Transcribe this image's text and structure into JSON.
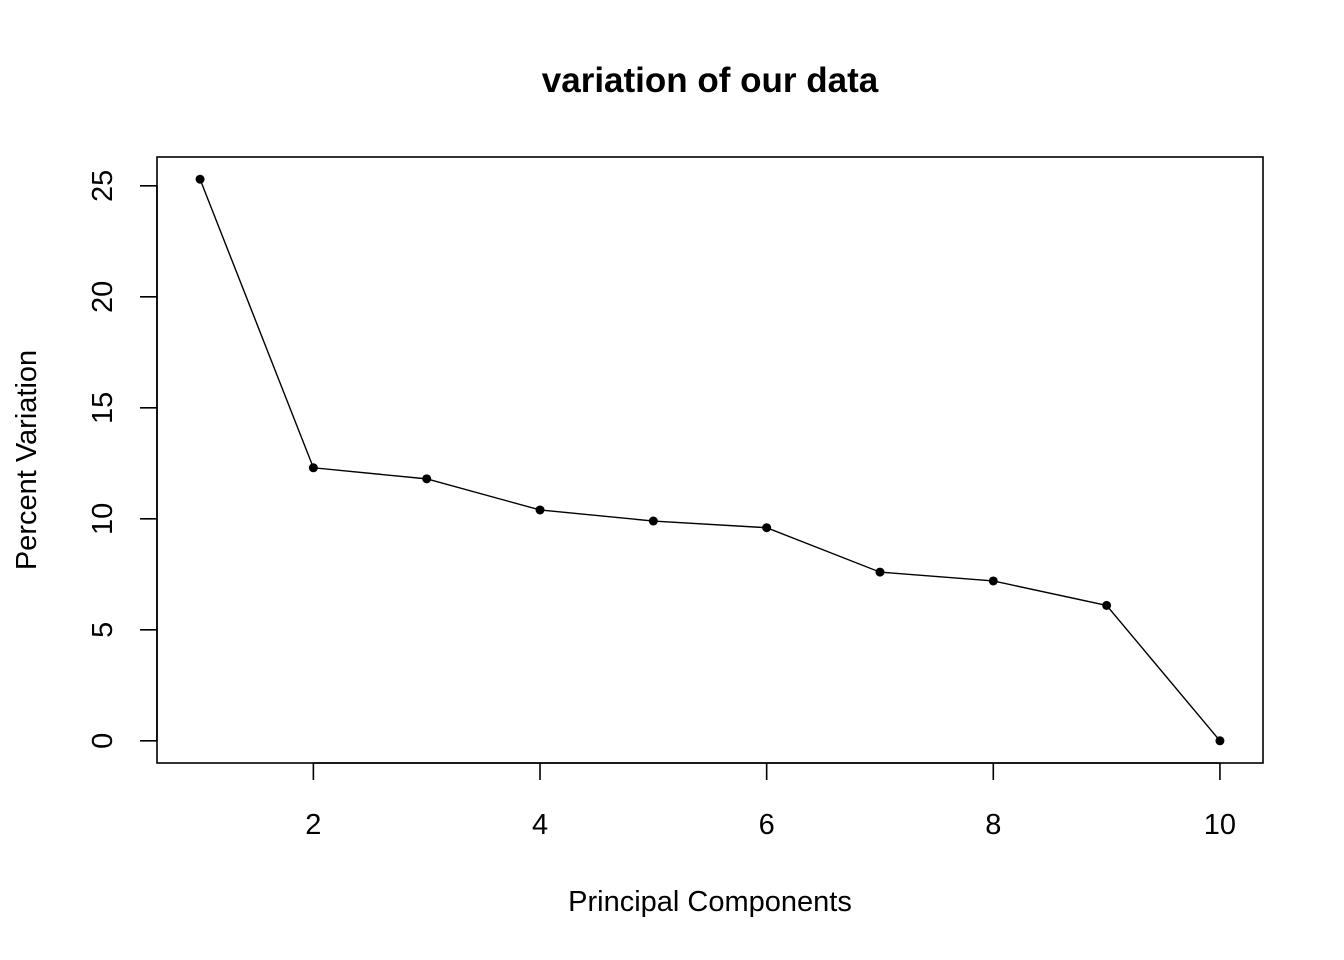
{
  "chart_data": {
    "type": "line",
    "title": "variation of our data",
    "xlabel": "Principal Components",
    "ylabel": "Percent Variation",
    "x": [
      1,
      2,
      3,
      4,
      5,
      6,
      7,
      8,
      9,
      10
    ],
    "series": [
      {
        "values": [
          25.3,
          12.3,
          11.8,
          10.4,
          9.9,
          9.6,
          7.6,
          7.2,
          6.1,
          0.0
        ]
      }
    ],
    "xlim": [
      0.62,
      10.38
    ],
    "ylim": [
      -1.0,
      26.3
    ],
    "xticks": [
      2,
      4,
      6,
      8,
      10
    ],
    "yticks": [
      0,
      5,
      10,
      15,
      20,
      25
    ],
    "grid": false,
    "legend": "none",
    "colors": {
      "line": "#000000",
      "points": "#000000",
      "frame": "#000000"
    },
    "marker": "filled-circle"
  }
}
